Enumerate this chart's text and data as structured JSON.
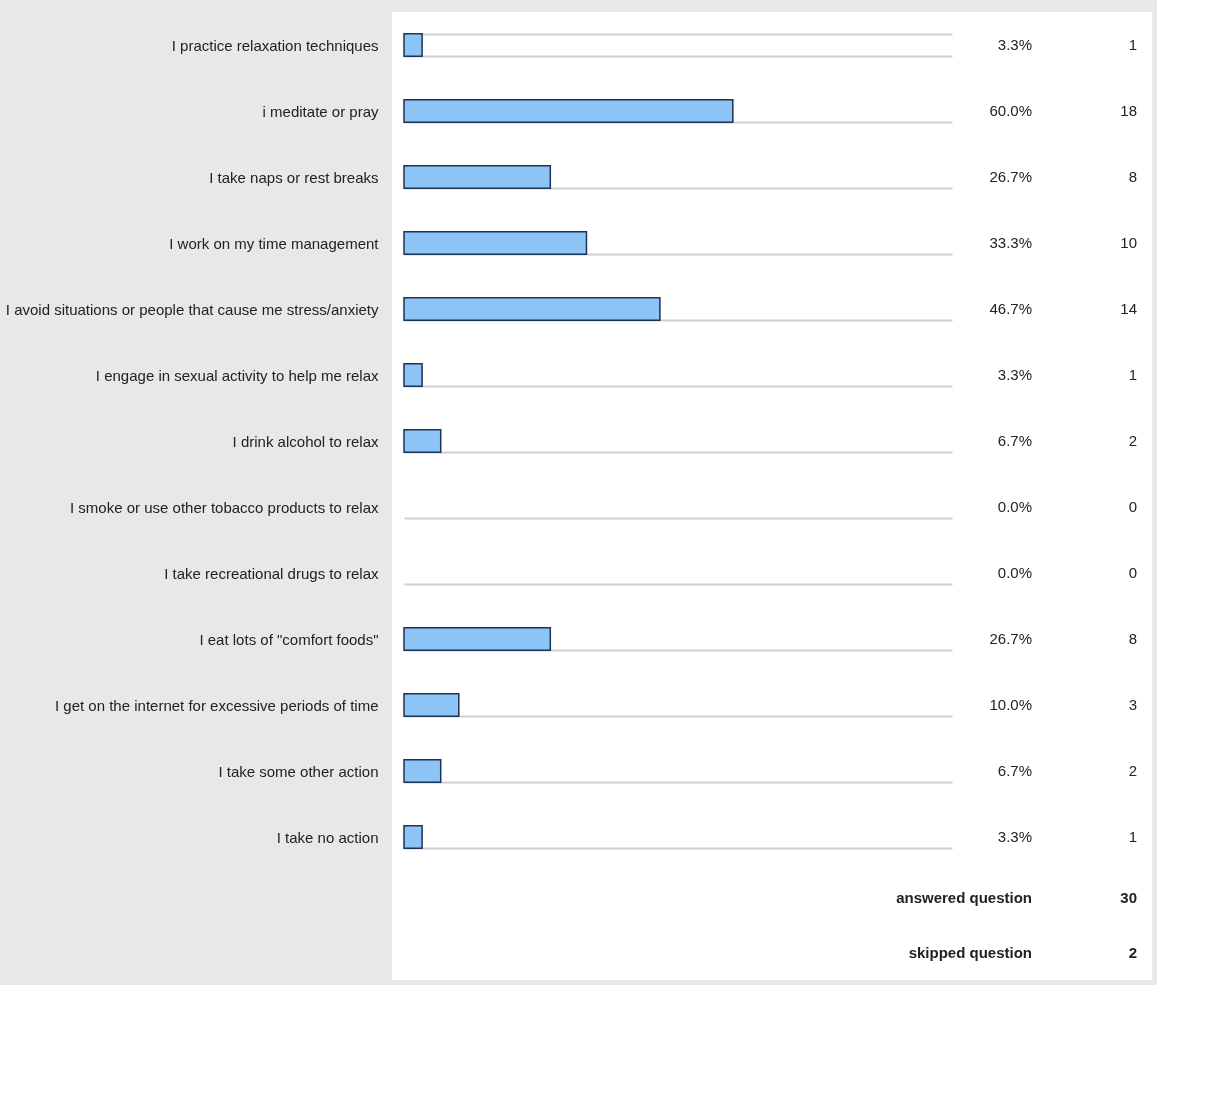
{
  "chart_data": {
    "type": "bar",
    "orientation": "horizontal",
    "color": "#8cc4f5",
    "grid": "y",
    "xlim": [
      0,
      100
    ],
    "categories": [
      "I practice relaxation techniques",
      "i meditate or pray",
      "I take naps or rest breaks",
      "I work on my time management",
      "I avoid situations or people that cause me stress/anxiety",
      "I engage in sexual activity to help me relax",
      "I drink alcohol to relax",
      "I smoke or use other tobacco products to relax",
      "I take recreational drugs to relax",
      "I eat lots of \"comfort foods\"",
      "I get on the internet for excessive periods of time",
      "I take some other action",
      "I take no action"
    ],
    "values": [
      3.3,
      60.0,
      26.7,
      33.3,
      46.7,
      3.3,
      6.7,
      0.0,
      0.0,
      26.7,
      10.0,
      6.7,
      3.3
    ],
    "value_labels": [
      "3.3%",
      "60.0%",
      "26.7%",
      "33.3%",
      "46.7%",
      "3.3%",
      "6.7%",
      "0.0%",
      "0.0%",
      "26.7%",
      "10.0%",
      "6.7%",
      "3.3%"
    ],
    "annotations": [
      "1",
      "18",
      "8",
      "10",
      "14",
      "1",
      "2",
      "0",
      "0",
      "8",
      "3",
      "2",
      "1",
      "answered question",
      "30",
      "skipped question",
      "2"
    ]
  }
}
